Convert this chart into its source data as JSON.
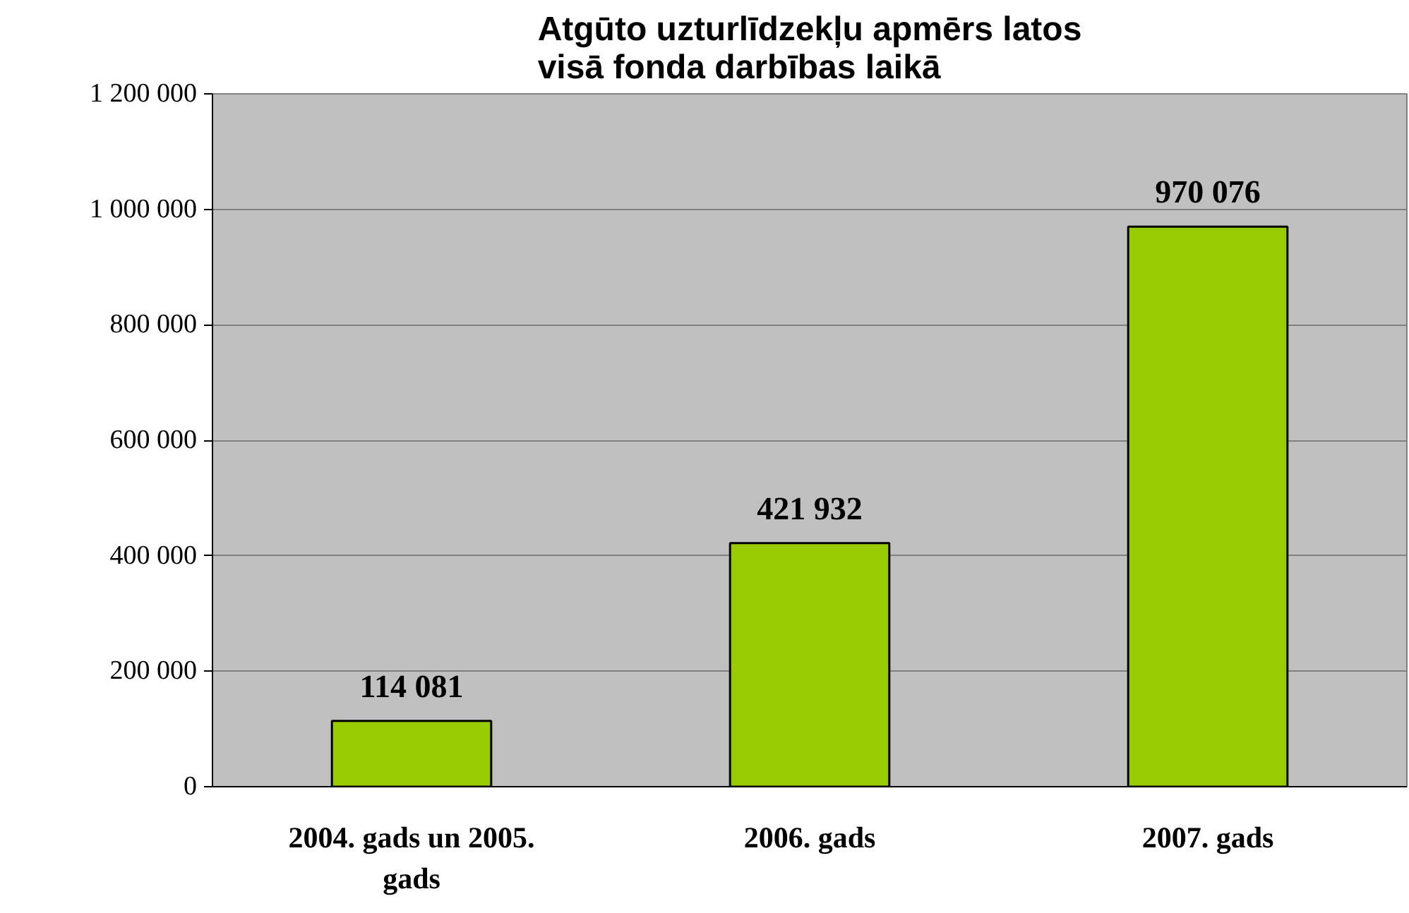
{
  "chart_data": {
    "type": "bar",
    "title": "Atgūto uzturlīdzekļu apmērs latos\nvisā fonda darbības laikā",
    "categories": [
      "2004. gads un 2005. gads",
      "2006. gads",
      "2007. gads"
    ],
    "values": [
      114081,
      421932,
      970076
    ],
    "color": "#99cc00",
    "value_labels": [
      "114 081",
      "421 932",
      "970 076"
    ],
    "ylim": [
      0,
      1200000
    ],
    "yticks": [
      0,
      {
        "value": 200000,
        "label": "200 000"
      },
      {
        "value": 400000,
        "label": "400 000"
      },
      {
        "value": 600000,
        "label": "600 000"
      },
      {
        "value": 800000,
        "label": "800 000"
      },
      {
        "value": 1000000,
        "label": "1 000 000"
      },
      {
        "value": 1200000,
        "label": "1 200 000"
      }
    ],
    "grid": "y"
  }
}
